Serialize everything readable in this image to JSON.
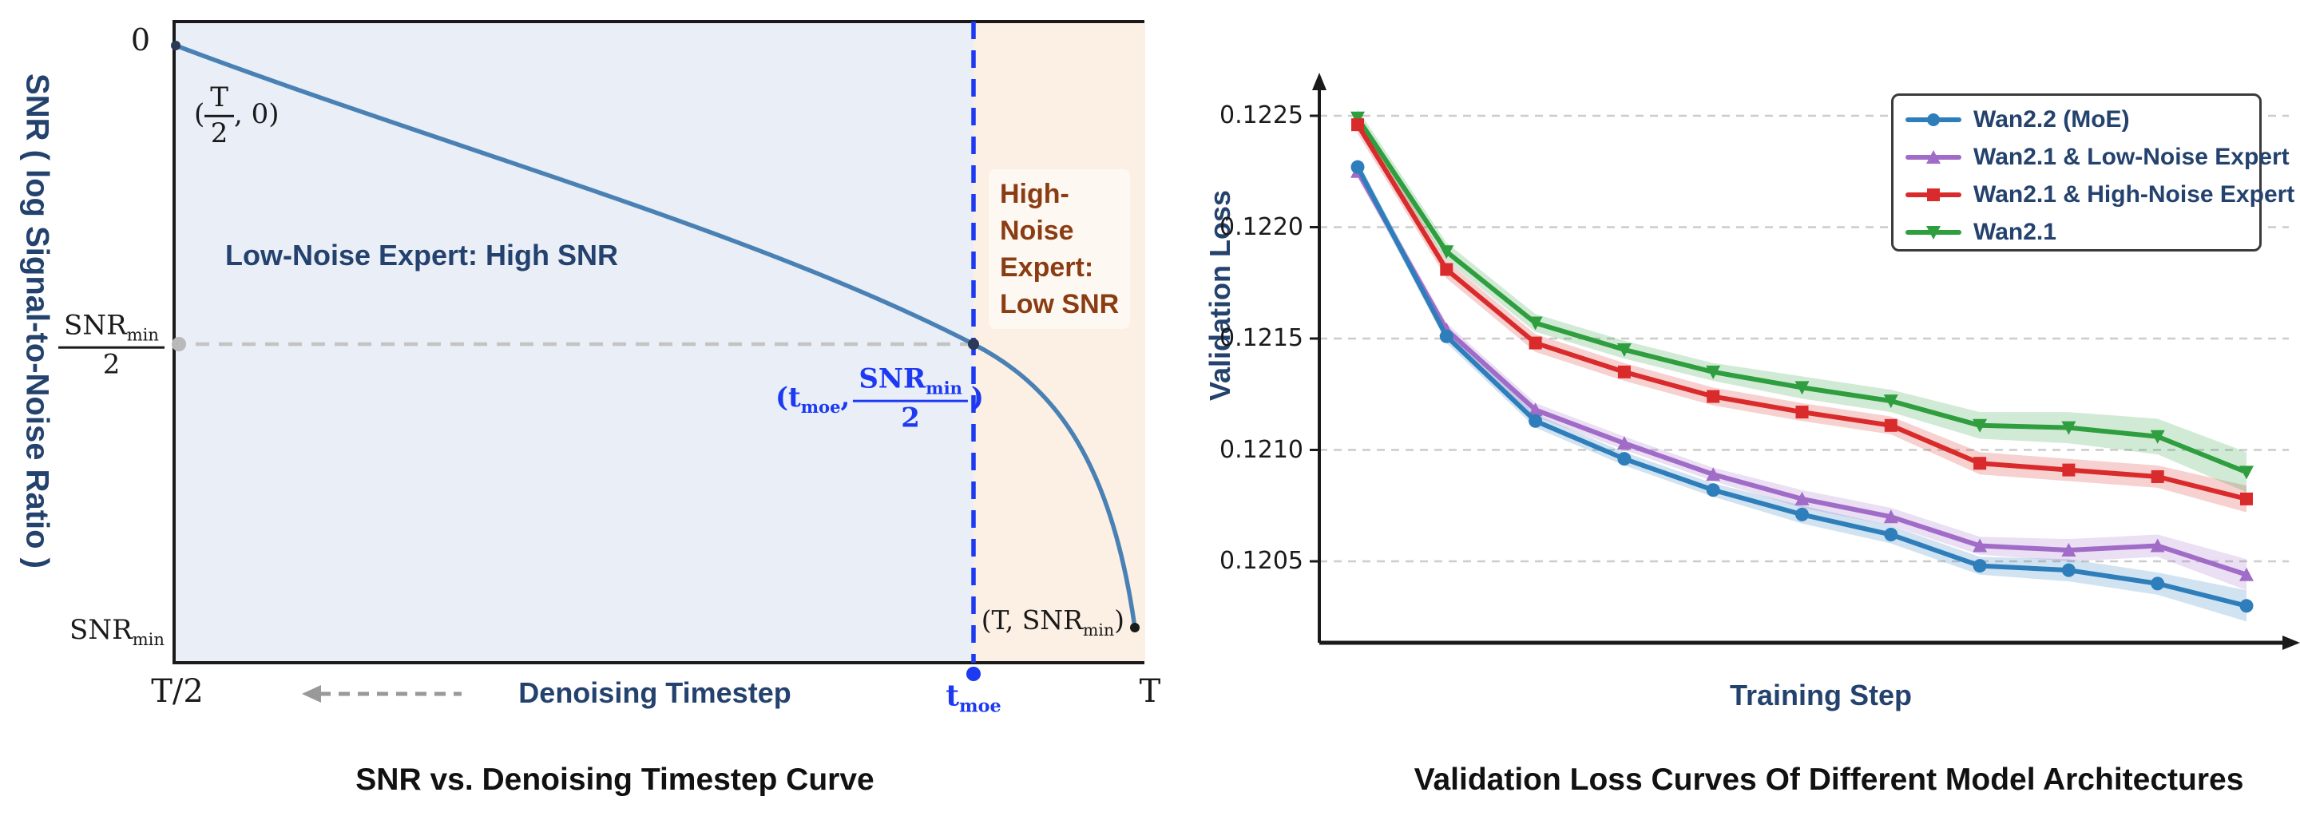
{
  "colors": {
    "navy_text": "#24426e",
    "brown_text": "#8a3c12",
    "accent_blue": "#1d3af2",
    "snr_curve": "#4a81b4",
    "region_left_bg": "#e9eef7",
    "region_right_bg": "#fcf0e4",
    "grid_dash": "#cccccc",
    "axis": "#1a1a1a",
    "ref_dash_gray": "#c3c3c3",
    "arrow_gray": "#999999",
    "series_blue": "#2e7ebb",
    "series_purple": "#a06cc8",
    "series_red": "#d92b2b",
    "series_green": "#2f9e3e"
  },
  "left": {
    "title": "SNR vs. Denoising Timestep Curve",
    "ylabel": "SNR ( log Signal-to-Noise Ratio )",
    "xlabel": "Denoising Timestep",
    "region_left_label": "Low-Noise Expert: High SNR",
    "region_right_lines": [
      "High-",
      "Noise",
      "Expert:",
      "Low SNR"
    ],
    "labels": {
      "zero": "0",
      "start_point": {
        "open": "(",
        "num": "T",
        "den": "2",
        "close": ", 0)"
      },
      "snr_half": {
        "num_main": "SNR",
        "num_sub": "min",
        "den": "2"
      },
      "snr_min": {
        "main": "SNR",
        "sub": "min"
      },
      "moe_point": {
        "open": "(",
        "t": "t",
        "t_sub": "moe",
        "comma": ",",
        "num_main": "SNR",
        "num_sub": "min",
        "den": "2",
        "close": ")"
      },
      "end_point": {
        "pre": "(T, SNR",
        "sub": "min",
        "post": ")"
      },
      "xtick_left": "T/2",
      "xtick_right": "T",
      "tmoe_main": "t",
      "tmoe_sub": "moe"
    }
  },
  "right": {
    "title": "Validation Loss Curves Of Different Model Architectures",
    "ylabel": "Validation Loss",
    "xlabel": "Training Step",
    "ytick_labels": [
      "0.1225",
      "0.1220",
      "0.1215",
      "0.1210",
      "0.1205"
    ]
  },
  "chart_data": [
    {
      "type": "line",
      "title": "SNR vs. Denoising Timestep Curve",
      "xlabel": "Denoising Timestep",
      "ylabel": "SNR ( log Signal-to-Noise Ratio )",
      "x_range": [
        "T/2",
        "T"
      ],
      "key_points": [
        {
          "x": "T/2",
          "y": "0"
        },
        {
          "x": "t_moe",
          "y": "SNR_min/2"
        },
        {
          "x": "T",
          "y": "SNR_min"
        }
      ],
      "regions": [
        {
          "label": "Low-Noise Expert: High SNR",
          "x_range": [
            "T/2",
            "t_moe"
          ]
        },
        {
          "label": "High-Noise Expert: Low SNR",
          "x_range": [
            "t_moe",
            "T"
          ]
        }
      ],
      "reference_lines": [
        {
          "axis": "y",
          "value": "SNR_min/2",
          "style": "dashed-gray"
        },
        {
          "axis": "x",
          "value": "t_moe",
          "style": "dashed-blue"
        }
      ]
    },
    {
      "type": "line",
      "title": "Validation Loss Curves Of Different Model Architectures",
      "xlabel": "Training Step",
      "ylabel": "Validation Loss",
      "x": [
        1,
        2,
        3,
        4,
        5,
        6,
        7,
        8,
        9,
        10,
        11
      ],
      "ylim": [
        0.1202,
        0.1226
      ],
      "yticks": [
        0.1225,
        0.122,
        0.1215,
        0.121,
        0.1205
      ],
      "grid": "horizontal-dashed",
      "legend_position": "upper right",
      "series": [
        {
          "name": "Wan2.2 (MoE)",
          "color": "#2e7ebb",
          "marker": "circle",
          "values": [
            0.12227,
            0.12151,
            0.12113,
            0.12096,
            0.12082,
            0.12071,
            0.12062,
            0.12048,
            0.12046,
            0.1204,
            0.1203
          ],
          "band": [
            3e-05,
            3e-05,
            3e-05,
            3e-05,
            3e-05,
            4e-05,
            4e-05,
            4e-05,
            5e-05,
            5e-05,
            7e-05
          ]
        },
        {
          "name": "Wan2.1 & Low-Noise Expert",
          "color": "#a06cc8",
          "marker": "triangle-up",
          "values": [
            0.12225,
            0.12154,
            0.12118,
            0.12103,
            0.12089,
            0.12078,
            0.1207,
            0.12057,
            0.12055,
            0.12057,
            0.12044
          ],
          "band": [
            3e-05,
            3e-05,
            3e-05,
            3e-05,
            3e-05,
            4e-05,
            4e-05,
            4e-05,
            5e-05,
            5e-05,
            7e-05
          ]
        },
        {
          "name": "Wan2.1 & High-Noise Expert",
          "color": "#d92b2b",
          "marker": "square",
          "values": [
            0.12246,
            0.12181,
            0.12148,
            0.12135,
            0.12124,
            0.12117,
            0.12111,
            0.12094,
            0.12091,
            0.12088,
            0.12078
          ],
          "band": [
            4e-05,
            4e-05,
            4e-05,
            4e-05,
            4e-05,
            4e-05,
            4e-05,
            5e-05,
            5e-05,
            5e-05,
            6e-05
          ]
        },
        {
          "name": "Wan2.1",
          "color": "#2f9e3e",
          "marker": "triangle-down",
          "values": [
            0.12249,
            0.12189,
            0.12157,
            0.12145,
            0.12135,
            0.12128,
            0.12122,
            0.12111,
            0.1211,
            0.12106,
            0.1209
          ],
          "band": [
            4e-05,
            4e-05,
            4e-05,
            4e-05,
            4e-05,
            5e-05,
            5e-05,
            6e-05,
            7e-05,
            8e-05,
            9e-05
          ]
        }
      ]
    }
  ]
}
